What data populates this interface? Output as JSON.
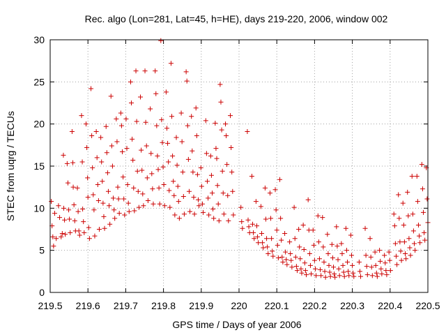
{
  "chart_data": {
    "type": "scatter",
    "title": "Rec. algo (Lon=281, Lat=45, h=HE), days 219-220, 2006, window 002",
    "xlabel": "GPS time / Days of year 2006",
    "ylabel": "STEC from uqrg / TECUs",
    "xlim": [
      219.5,
      220.5
    ],
    "ylim": [
      0,
      30
    ],
    "x_ticks": [
      "219.5",
      "219.6",
      "219.7",
      "219.8",
      "219.9",
      "220",
      "220.1",
      "220.2",
      "220.3",
      "220.4",
      "220.5"
    ],
    "y_ticks": [
      "0",
      "5",
      "10",
      "15",
      "20",
      "25",
      "30"
    ],
    "grid": true,
    "marker": "plus",
    "color": "#cc0000",
    "points": [
      [
        219.503,
        10.8
      ],
      [
        219.505,
        7.9
      ],
      [
        219.507,
        6.6
      ],
      [
        219.509,
        5.5
      ],
      [
        219.512,
        9.4
      ],
      [
        219.516,
        6.4
      ],
      [
        219.522,
        10.3
      ],
      [
        219.525,
        8.9
      ],
      [
        219.529,
        6.6
      ],
      [
        219.532,
        7.0
      ],
      [
        219.535,
        16.3
      ],
      [
        219.536,
        10.0
      ],
      [
        219.538,
        8.6
      ],
      [
        219.54,
        6.9
      ],
      [
        219.545,
        15.3
      ],
      [
        219.547,
        13.0
      ],
      [
        219.549,
        9.8
      ],
      [
        219.551,
        8.7
      ],
      [
        219.553,
        7.1
      ],
      [
        219.558,
        19.1
      ],
      [
        219.56,
        15.4
      ],
      [
        219.561,
        12.5
      ],
      [
        219.563,
        10.4
      ],
      [
        219.565,
        8.5
      ],
      [
        219.567,
        7.3
      ],
      [
        219.572,
        12.4
      ],
      [
        219.574,
        9.6
      ],
      [
        219.576,
        7.3
      ],
      [
        219.578,
        6.8
      ],
      [
        219.583,
        21.0
      ],
      [
        219.585,
        15.5
      ],
      [
        219.586,
        9.9
      ],
      [
        219.588,
        8.4
      ],
      [
        219.59,
        7.1
      ],
      [
        219.595,
        20.0
      ],
      [
        219.597,
        17.2
      ],
      [
        219.599,
        13.6
      ],
      [
        219.6,
        11.3
      ],
      [
        219.602,
        7.7
      ],
      [
        219.604,
        6.4
      ],
      [
        219.608,
        24.2
      ],
      [
        219.61,
        18.6
      ],
      [
        219.612,
        14.8
      ],
      [
        219.614,
        11.6
      ],
      [
        219.616,
        9.8
      ],
      [
        219.618,
        6.7
      ],
      [
        219.622,
        19.1
      ],
      [
        219.624,
        16.0
      ],
      [
        219.626,
        12.8
      ],
      [
        219.628,
        10.9
      ],
      [
        219.63,
        7.5
      ],
      [
        219.634,
        18.4
      ],
      [
        219.636,
        15.5
      ],
      [
        219.638,
        13.2
      ],
      [
        219.64,
        10.6
      ],
      [
        219.642,
        9.0
      ],
      [
        219.644,
        7.6
      ],
      [
        219.648,
        19.7
      ],
      [
        219.65,
        16.6
      ],
      [
        219.652,
        14.2
      ],
      [
        219.654,
        12.0
      ],
      [
        219.656,
        10.3
      ],
      [
        219.658,
        8.1
      ],
      [
        219.661,
        23.3
      ],
      [
        219.663,
        17.4
      ],
      [
        219.665,
        15.0
      ],
      [
        219.667,
        11.2
      ],
      [
        219.669,
        9.8
      ],
      [
        219.671,
        8.8
      ],
      [
        219.675,
        20.6
      ],
      [
        219.677,
        17.9
      ],
      [
        219.679,
        12.5
      ],
      [
        219.681,
        11.1
      ],
      [
        219.683,
        9.4
      ],
      [
        219.687,
        21.3
      ],
      [
        219.689,
        19.8
      ],
      [
        219.691,
        16.7
      ],
      [
        219.693,
        13.7
      ],
      [
        219.695,
        11.1
      ],
      [
        219.697,
        9.2
      ],
      [
        219.701,
        20.6
      ],
      [
        219.703,
        17.1
      ],
      [
        219.705,
        12.8
      ],
      [
        219.707,
        10.6
      ],
      [
        219.709,
        9.6
      ],
      [
        219.713,
        25.0
      ],
      [
        219.715,
        22.5
      ],
      [
        219.717,
        18.2
      ],
      [
        219.719,
        15.7
      ],
      [
        219.721,
        12.4
      ],
      [
        219.723,
        9.7
      ],
      [
        219.727,
        26.3
      ],
      [
        219.729,
        20.3
      ],
      [
        219.731,
        14.4
      ],
      [
        219.733,
        12.0
      ],
      [
        219.735,
        10.1
      ],
      [
        219.739,
        23.2
      ],
      [
        219.741,
        16.9
      ],
      [
        219.743,
        14.5
      ],
      [
        219.745,
        11.7
      ],
      [
        219.747,
        10.3
      ],
      [
        219.751,
        26.3
      ],
      [
        219.753,
        20.2
      ],
      [
        219.755,
        17.4
      ],
      [
        219.757,
        13.6
      ],
      [
        219.759,
        10.9
      ],
      [
        219.765,
        21.8
      ],
      [
        219.767,
        16.5
      ],
      [
        219.769,
        14.1
      ],
      [
        219.771,
        12.3
      ],
      [
        219.773,
        10.5
      ],
      [
        219.778,
        26.3
      ],
      [
        219.78,
        23.6
      ],
      [
        219.782,
        19.8
      ],
      [
        219.784,
        16.2
      ],
      [
        219.786,
        14.6
      ],
      [
        219.788,
        12.4
      ],
      [
        219.79,
        10.5
      ],
      [
        219.793,
        29.9
      ],
      [
        219.795,
        20.5
      ],
      [
        219.797,
        17.8
      ],
      [
        219.799,
        14.9
      ],
      [
        219.801,
        12.8
      ],
      [
        219.803,
        10.3
      ],
      [
        219.807,
        23.8
      ],
      [
        219.809,
        19.5
      ],
      [
        219.811,
        17.7
      ],
      [
        219.813,
        15.5
      ],
      [
        219.815,
        12.1
      ],
      [
        219.817,
        10.1
      ],
      [
        219.82,
        27.2
      ],
      [
        219.822,
        20.9
      ],
      [
        219.824,
        16.2
      ],
      [
        219.826,
        13.2
      ],
      [
        219.828,
        11.5
      ],
      [
        219.83,
        9.2
      ],
      [
        219.834,
        18.4
      ],
      [
        219.836,
        15.1
      ],
      [
        219.838,
        12.6
      ],
      [
        219.84,
        10.8
      ],
      [
        219.842,
        8.8
      ],
      [
        219.847,
        21.3
      ],
      [
        219.849,
        17.9
      ],
      [
        219.851,
        14.3
      ],
      [
        219.853,
        11.4
      ],
      [
        219.855,
        9.3
      ],
      [
        219.86,
        26.2
      ],
      [
        219.862,
        25.1
      ],
      [
        219.864,
        19.8
      ],
      [
        219.866,
        15.8
      ],
      [
        219.868,
        12.0
      ],
      [
        219.87,
        9.6
      ],
      [
        219.874,
        20.9
      ],
      [
        219.876,
        16.8
      ],
      [
        219.878,
        14.3
      ],
      [
        219.88,
        11.3
      ],
      [
        219.882,
        9.3
      ],
      [
        219.886,
        21.9
      ],
      [
        219.888,
        18.6
      ],
      [
        219.89,
        14.0
      ],
      [
        219.892,
        11.0
      ],
      [
        219.894,
        10.3
      ],
      [
        219.899,
        14.8
      ],
      [
        219.901,
        12.6
      ],
      [
        219.903,
        10.5
      ],
      [
        219.905,
        9.5
      ],
      [
        219.912,
        20.4
      ],
      [
        219.914,
        16.5
      ],
      [
        219.916,
        13.2
      ],
      [
        219.918,
        11.2
      ],
      [
        219.92,
        9.2
      ],
      [
        219.925,
        16.2
      ],
      [
        219.927,
        13.9
      ],
      [
        219.929,
        11.8
      ],
      [
        219.931,
        9.9
      ],
      [
        219.933,
        8.8
      ],
      [
        219.937,
        20.1
      ],
      [
        219.939,
        17.1
      ],
      [
        219.941,
        15.9
      ],
      [
        219.943,
        12.7
      ],
      [
        219.945,
        10.5
      ],
      [
        219.947,
        8.5
      ],
      [
        219.95,
        24.7
      ],
      [
        219.952,
        22.6
      ],
      [
        219.954,
        19.3
      ],
      [
        219.956,
        14.4
      ],
      [
        219.958,
        11.8
      ],
      [
        219.96,
        9.3
      ],
      [
        219.964,
        20.0
      ],
      [
        219.966,
        18.6
      ],
      [
        219.968,
        15.2
      ],
      [
        219.97,
        11.5
      ],
      [
        219.972,
        8.5
      ],
      [
        219.977,
        21.0
      ],
      [
        219.979,
        17.2
      ],
      [
        219.981,
        14.3
      ],
      [
        219.983,
        12.0
      ],
      [
        219.985,
        9.2
      ],
      [
        220.005,
        10.1
      ],
      [
        220.007,
        8.4
      ],
      [
        220.009,
        7.6
      ],
      [
        220.022,
        19.1
      ],
      [
        220.024,
        8.6
      ],
      [
        220.026,
        7.8
      ],
      [
        220.028,
        7.1
      ],
      [
        220.034,
        13.8
      ],
      [
        220.036,
        8.1
      ],
      [
        220.038,
        7.1
      ],
      [
        220.04,
        6.4
      ],
      [
        220.045,
        10.8
      ],
      [
        220.047,
        7.9
      ],
      [
        220.049,
        6.6
      ],
      [
        220.051,
        5.9
      ],
      [
        220.058,
        10.2
      ],
      [
        220.06,
        7.0
      ],
      [
        220.062,
        5.9
      ],
      [
        220.064,
        5.3
      ],
      [
        220.069,
        12.4
      ],
      [
        220.071,
        8.7
      ],
      [
        220.073,
        6.4
      ],
      [
        220.075,
        5.4
      ],
      [
        220.077,
        4.6
      ],
      [
        220.082,
        11.8
      ],
      [
        220.084,
        8.8
      ],
      [
        220.086,
        6.4
      ],
      [
        220.088,
        4.9
      ],
      [
        220.09,
        4.3
      ],
      [
        220.096,
        12.2
      ],
      [
        220.098,
        9.8
      ],
      [
        220.1,
        7.4
      ],
      [
        220.102,
        5.6
      ],
      [
        220.104,
        4.1
      ],
      [
        220.108,
        13.4
      ],
      [
        220.11,
        8.8
      ],
      [
        220.112,
        6.2
      ],
      [
        220.114,
        4.2
      ],
      [
        220.116,
        3.6
      ],
      [
        220.121,
        7.0
      ],
      [
        220.123,
        4.8
      ],
      [
        220.125,
        3.9
      ],
      [
        220.127,
        3.3
      ],
      [
        220.134,
        6.0
      ],
      [
        220.136,
        4.6
      ],
      [
        220.138,
        3.8
      ],
      [
        220.14,
        3.0
      ],
      [
        220.146,
        10.1
      ],
      [
        220.148,
        6.4
      ],
      [
        220.15,
        4.2
      ],
      [
        220.152,
        3.1
      ],
      [
        220.154,
        2.6
      ],
      [
        220.158,
        7.5
      ],
      [
        220.16,
        5.4
      ],
      [
        220.162,
        4.0
      ],
      [
        220.164,
        2.8
      ],
      [
        220.166,
        2.3
      ],
      [
        220.17,
        8.0
      ],
      [
        220.172,
        5.1
      ],
      [
        220.174,
        3.5
      ],
      [
        220.176,
        2.6
      ],
      [
        220.178,
        2.1
      ],
      [
        220.183,
        11.0
      ],
      [
        220.185,
        7.4
      ],
      [
        220.187,
        4.6
      ],
      [
        220.189,
        3.2
      ],
      [
        220.191,
        2.2
      ],
      [
        220.196,
        7.4
      ],
      [
        220.198,
        5.6
      ],
      [
        220.2,
        3.8
      ],
      [
        220.202,
        2.8
      ],
      [
        220.204,
        2.0
      ],
      [
        220.209,
        9.1
      ],
      [
        220.211,
        6.0
      ],
      [
        220.213,
        4.0
      ],
      [
        220.215,
        2.7
      ],
      [
        220.217,
        2.0
      ],
      [
        220.221,
        8.9
      ],
      [
        220.223,
        5.4
      ],
      [
        220.225,
        3.6
      ],
      [
        220.227,
        2.5
      ],
      [
        220.229,
        1.8
      ],
      [
        220.234,
        6.9
      ],
      [
        220.236,
        4.6
      ],
      [
        220.238,
        3.2
      ],
      [
        220.24,
        2.4
      ],
      [
        220.242,
        1.9
      ],
      [
        220.246,
        5.7
      ],
      [
        220.248,
        4.1
      ],
      [
        220.25,
        3.0
      ],
      [
        220.252,
        2.2
      ],
      [
        220.254,
        1.8
      ],
      [
        220.258,
        7.8
      ],
      [
        220.26,
        5.5
      ],
      [
        220.262,
        3.9
      ],
      [
        220.264,
        2.8
      ],
      [
        220.266,
        2.0
      ],
      [
        220.271,
        5.8
      ],
      [
        220.273,
        4.6
      ],
      [
        220.275,
        3.2
      ],
      [
        220.277,
        2.4
      ],
      [
        220.279,
        1.9
      ],
      [
        220.283,
        7.6
      ],
      [
        220.285,
        5.0
      ],
      [
        220.287,
        3.6
      ],
      [
        220.289,
        2.5
      ],
      [
        220.291,
        2.0
      ],
      [
        220.296,
        6.8
      ],
      [
        220.298,
        4.4
      ],
      [
        220.3,
        3.2
      ],
      [
        220.302,
        2.3
      ],
      [
        220.304,
        1.9
      ],
      [
        220.318,
        3.6
      ],
      [
        220.32,
        2.5
      ],
      [
        220.322,
        1.9
      ],
      [
        220.334,
        7.6
      ],
      [
        220.336,
        4.4
      ],
      [
        220.338,
        3.1
      ],
      [
        220.34,
        2.1
      ],
      [
        220.347,
        6.4
      ],
      [
        220.349,
        4.2
      ],
      [
        220.351,
        3.0
      ],
      [
        220.353,
        2.0
      ],
      [
        220.36,
        4.8
      ],
      [
        220.362,
        3.2
      ],
      [
        220.364,
        2.3
      ],
      [
        220.366,
        1.9
      ],
      [
        220.372,
        5.0
      ],
      [
        220.374,
        3.7
      ],
      [
        220.376,
        2.8
      ],
      [
        220.378,
        2.2
      ],
      [
        220.385,
        4.4
      ],
      [
        220.387,
        3.5
      ],
      [
        220.389,
        2.6
      ],
      [
        220.391,
        2.1
      ],
      [
        220.397,
        4.8
      ],
      [
        220.399,
        3.8
      ],
      [
        220.401,
        2.6
      ],
      [
        220.41,
        9.3
      ],
      [
        220.412,
        7.9
      ],
      [
        220.414,
        5.8
      ],
      [
        220.416,
        4.3
      ],
      [
        220.418,
        3.3
      ],
      [
        220.422,
        11.6
      ],
      [
        220.424,
        8.8
      ],
      [
        220.426,
        6.0
      ],
      [
        220.428,
        4.9
      ],
      [
        220.43,
        3.8
      ],
      [
        220.434,
        10.6
      ],
      [
        220.436,
        8.0
      ],
      [
        220.438,
        6.0
      ],
      [
        220.44,
        4.6
      ],
      [
        220.442,
        4.0
      ],
      [
        220.446,
        11.9
      ],
      [
        220.448,
        9.1
      ],
      [
        220.45,
        6.4
      ],
      [
        220.452,
        5.3
      ],
      [
        220.454,
        4.4
      ],
      [
        220.458,
        13.8
      ],
      [
        220.46,
        9.3
      ],
      [
        220.462,
        7.3
      ],
      [
        220.464,
        5.8
      ],
      [
        220.466,
        5.0
      ],
      [
        220.471,
        13.8
      ],
      [
        220.473,
        10.8
      ],
      [
        220.475,
        8.0
      ],
      [
        220.477,
        6.7
      ],
      [
        220.479,
        5.9
      ],
      [
        220.484,
        15.2
      ],
      [
        220.486,
        12.3
      ],
      [
        220.488,
        9.5
      ],
      [
        220.49,
        7.1
      ],
      [
        220.492,
        6.2
      ],
      [
        220.496,
        14.8
      ],
      [
        220.498,
        11.1
      ],
      [
        220.5,
        8.3
      ]
    ]
  }
}
